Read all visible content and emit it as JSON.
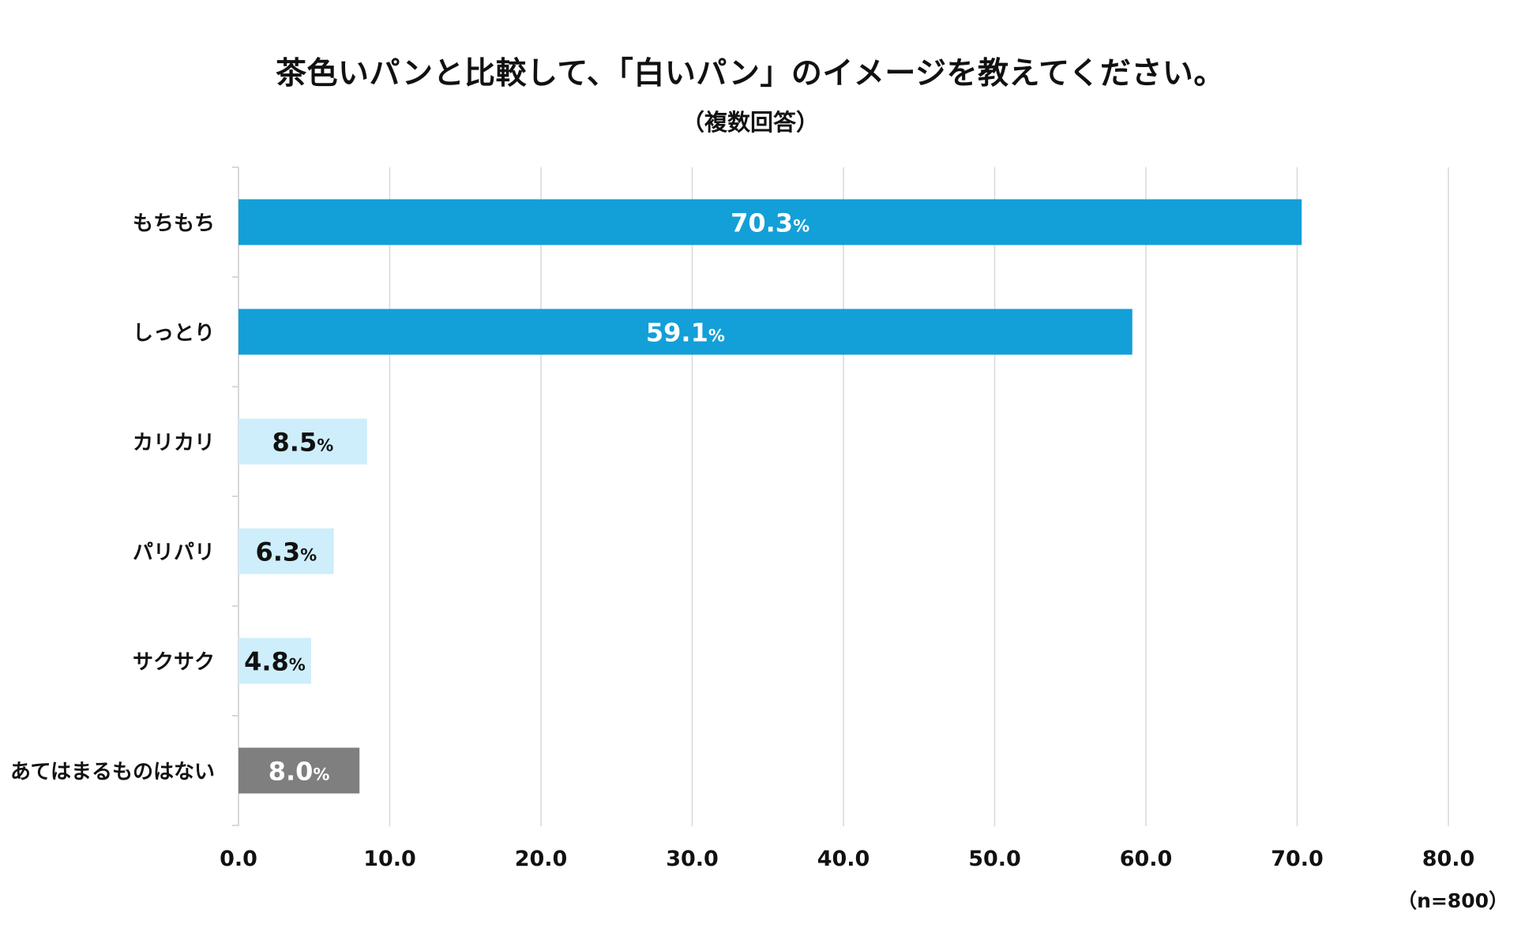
{
  "chart_data": {
    "type": "bar",
    "orientation": "horizontal",
    "title": "茶色いパンと比較して、「白いパン」のイメージを教えてください。",
    "subtitle": "（複数回答）",
    "categories": [
      "もちもち",
      "しっとり",
      "カリカリ",
      "パリパリ",
      "サクサク",
      "あてはまるものはない"
    ],
    "values": [
      70.3,
      59.1,
      8.5,
      6.3,
      4.8,
      8.0
    ],
    "value_labels": [
      "70.3",
      "59.1",
      "8.5",
      "6.3",
      "4.8",
      "8.0"
    ],
    "value_suffix": "%",
    "bar_colors": [
      "#139fd8",
      "#139fd8",
      "#cdeefa",
      "#cdeefa",
      "#cdeefa",
      "#7f7f7f"
    ],
    "label_colors": [
      "#ffffff",
      "#ffffff",
      "#111111",
      "#111111",
      "#111111",
      "#ffffff"
    ],
    "xlim": [
      0,
      80
    ],
    "xticks": [
      0,
      10,
      20,
      30,
      40,
      50,
      60,
      70,
      80
    ],
    "xtick_labels": [
      "0.0",
      "10.0",
      "20.0",
      "30.0",
      "40.0",
      "50.0",
      "60.0",
      "70.0",
      "80.0"
    ],
    "grid": true,
    "xlabel": "",
    "ylabel": "",
    "note": "（n=800）"
  }
}
